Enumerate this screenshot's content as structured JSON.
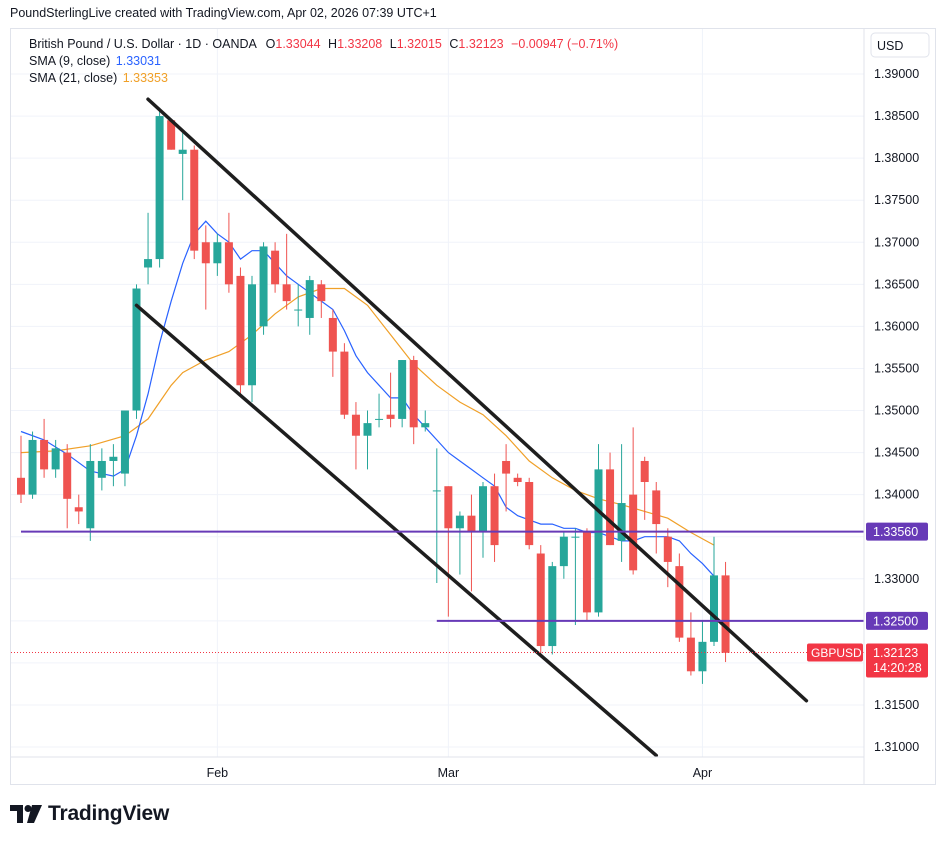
{
  "header": {
    "caption": "PoundSterlingLive created with TradingView.com, Apr 02, 2026 07:39 UTC+1"
  },
  "legend": {
    "instrument": "British Pound / U.S. Dollar · 1D · OANDA",
    "o_label": "O",
    "o_value": "1.33044",
    "h_label": "H",
    "h_value": "1.33208",
    "l_label": "L",
    "l_value": "1.32015",
    "c_label": "C",
    "c_value": "1.32123",
    "change": "−0.00947 (−0.71%)",
    "sma9_label": "SMA (9, close)",
    "sma9_value": "1.33031",
    "sma21_label": "SMA (21, close)",
    "sma21_value": "1.33353"
  },
  "currency": "USD",
  "logo": {
    "text": "TradingView"
  },
  "colors": {
    "up": "#26a69a",
    "down": "#ef5350",
    "sma9": "#2962ff",
    "sma21": "#f0a028",
    "level": "#673ab7",
    "trend": "#1e1e1e",
    "price_badge": "#f23645",
    "grid": "#f0f3fa"
  },
  "chart_data": {
    "type": "candlestick",
    "symbol": "GBPUSD",
    "ylim": [
      1.3075,
      1.3915
    ],
    "yticks": [
      "1.39000",
      "1.38500",
      "1.38000",
      "1.37500",
      "1.37000",
      "1.36500",
      "1.36000",
      "1.35500",
      "1.35000",
      "1.34500",
      "1.34000",
      "1.33500",
      "1.33000",
      "1.32500",
      "1.32000",
      "1.31500",
      "1.31000"
    ],
    "xlabels": [
      {
        "i": 17,
        "label": "Feb"
      },
      {
        "i": 37,
        "label": "Mar"
      },
      {
        "i": 59,
        "label": "Apr"
      }
    ],
    "candles": [
      [
        1.342,
        1.347,
        1.339,
        1.34
      ],
      [
        1.34,
        1.3475,
        1.3395,
        1.3465
      ],
      [
        1.3465,
        1.349,
        1.342,
        1.343
      ],
      [
        1.343,
        1.3465,
        1.342,
        1.3455
      ],
      [
        1.345,
        1.346,
        1.336,
        1.3395
      ],
      [
        1.3385,
        1.34,
        1.3365,
        1.338
      ],
      [
        1.336,
        1.346,
        1.3345,
        1.344
      ],
      [
        1.342,
        1.3455,
        1.3405,
        1.344
      ],
      [
        1.344,
        1.346,
        1.341,
        1.3445
      ],
      [
        1.3425,
        1.35,
        1.341,
        1.35
      ],
      [
        1.35,
        1.365,
        1.349,
        1.3645
      ],
      [
        1.367,
        1.3735,
        1.365,
        1.368
      ],
      [
        1.368,
        1.386,
        1.367,
        1.385
      ],
      [
        1.3845,
        1.3845,
        1.381,
        1.381
      ],
      [
        1.3805,
        1.383,
        1.375,
        1.381
      ],
      [
        1.381,
        1.3815,
        1.368,
        1.369
      ],
      [
        1.37,
        1.372,
        1.362,
        1.3675
      ],
      [
        1.3675,
        1.371,
        1.366,
        1.37
      ],
      [
        1.37,
        1.3735,
        1.364,
        1.365
      ],
      [
        1.366,
        1.367,
        1.352,
        1.353
      ],
      [
        1.353,
        1.366,
        1.351,
        1.365
      ],
      [
        1.36,
        1.37,
        1.359,
        1.3695
      ],
      [
        1.369,
        1.37,
        1.364,
        1.365
      ],
      [
        1.365,
        1.371,
        1.362,
        1.363
      ],
      [
        1.362,
        1.365,
        1.36,
        1.362
      ],
      [
        1.361,
        1.366,
        1.359,
        1.3655
      ],
      [
        1.365,
        1.3655,
        1.361,
        1.363
      ],
      [
        1.361,
        1.362,
        1.354,
        1.357
      ],
      [
        1.357,
        1.358,
        1.349,
        1.3495
      ],
      [
        1.3495,
        1.351,
        1.343,
        1.347
      ],
      [
        1.347,
        1.35,
        1.343,
        1.3485
      ],
      [
        1.349,
        1.352,
        1.348,
        1.349
      ],
      [
        1.3495,
        1.3545,
        1.348,
        1.349
      ],
      [
        1.349,
        1.356,
        1.348,
        1.356
      ],
      [
        1.356,
        1.3565,
        1.346,
        1.348
      ],
      [
        1.348,
        1.35,
        1.3475,
        1.3485
      ],
      [
        1.3405,
        1.3455,
        1.3295,
        1.3405
      ],
      [
        1.341,
        1.341,
        1.3255,
        1.336
      ],
      [
        1.336,
        1.338,
        1.3305,
        1.3375
      ],
      [
        1.3375,
        1.34,
        1.3285,
        1.3355
      ],
      [
        1.3355,
        1.3415,
        1.3325,
        1.341
      ],
      [
        1.341,
        1.3425,
        1.332,
        1.334
      ],
      [
        1.344,
        1.346,
        1.338,
        1.3425
      ],
      [
        1.342,
        1.3425,
        1.341,
        1.3415
      ],
      [
        1.3415,
        1.342,
        1.3335,
        1.334
      ],
      [
        1.333,
        1.334,
        1.321,
        1.322
      ],
      [
        1.322,
        1.332,
        1.321,
        1.3315
      ],
      [
        1.3315,
        1.3355,
        1.33,
        1.335
      ],
      [
        1.335,
        1.336,
        1.3245,
        1.335
      ],
      [
        1.3355,
        1.336,
        1.325,
        1.326
      ],
      [
        1.326,
        1.346,
        1.3255,
        1.343
      ],
      [
        1.343,
        1.345,
        1.334,
        1.334
      ],
      [
        1.3345,
        1.346,
        1.332,
        1.339
      ],
      [
        1.34,
        1.348,
        1.3305,
        1.331
      ],
      [
        1.344,
        1.3445,
        1.337,
        1.3415
      ],
      [
        1.3405,
        1.3415,
        1.333,
        1.3365
      ],
      [
        1.335,
        1.336,
        1.329,
        1.332
      ],
      [
        1.3315,
        1.333,
        1.3225,
        1.323
      ],
      [
        1.323,
        1.326,
        1.3185,
        1.319
      ],
      [
        1.319,
        1.325,
        1.3175,
        1.3225
      ],
      [
        1.3225,
        1.335,
        1.322,
        1.3304
      ],
      [
        1.3304,
        1.332,
        1.3201,
        1.3212
      ]
    ],
    "sma9": [
      [
        0,
        1.3475
      ],
      [
        2,
        1.3465
      ],
      [
        4,
        1.3448
      ],
      [
        6,
        1.3428
      ],
      [
        8,
        1.3422
      ],
      [
        9,
        1.343
      ],
      [
        10,
        1.347
      ],
      [
        11,
        1.352
      ],
      [
        12,
        1.358
      ],
      [
        13,
        1.363
      ],
      [
        14,
        1.3675
      ],
      [
        15,
        1.371
      ],
      [
        16,
        1.3725
      ],
      [
        17,
        1.371
      ],
      [
        18,
        1.37
      ],
      [
        19,
        1.368
      ],
      [
        20,
        1.369
      ],
      [
        21,
        1.369
      ],
      [
        22,
        1.3675
      ],
      [
        23,
        1.366
      ],
      [
        24,
        1.365
      ],
      [
        25,
        1.364
      ],
      [
        26,
        1.363
      ],
      [
        27,
        1.362
      ],
      [
        28,
        1.3595
      ],
      [
        29,
        1.3565
      ],
      [
        30,
        1.3545
      ],
      [
        31,
        1.353
      ],
      [
        32,
        1.3515
      ],
      [
        33,
        1.3515
      ],
      [
        34,
        1.3495
      ],
      [
        35,
        1.348
      ],
      [
        36,
        1.3465
      ],
      [
        37,
        1.345
      ],
      [
        38,
        1.344
      ],
      [
        39,
        1.343
      ],
      [
        40,
        1.342
      ],
      [
        41,
        1.341
      ],
      [
        42,
        1.3385
      ],
      [
        43,
        1.3375
      ],
      [
        44,
        1.337
      ],
      [
        45,
        1.3365
      ],
      [
        46,
        1.3365
      ],
      [
        47,
        1.336
      ],
      [
        48,
        1.336
      ],
      [
        49,
        1.3355
      ],
      [
        50,
        1.3355
      ],
      [
        51,
        1.335
      ],
      [
        52,
        1.3345
      ],
      [
        53,
        1.3345
      ],
      [
        54,
        1.335
      ],
      [
        55,
        1.335
      ],
      [
        56,
        1.335
      ],
      [
        57,
        1.3345
      ],
      [
        58,
        1.333
      ],
      [
        59,
        1.3318
      ],
      [
        60,
        1.3303
      ]
    ],
    "sma21": [
      [
        0,
        1.345
      ],
      [
        3,
        1.3452
      ],
      [
        6,
        1.3458
      ],
      [
        9,
        1.347
      ],
      [
        11,
        1.349
      ],
      [
        12,
        1.351
      ],
      [
        13,
        1.353
      ],
      [
        14,
        1.3545
      ],
      [
        16,
        1.356
      ],
      [
        18,
        1.357
      ],
      [
        20,
        1.359
      ],
      [
        22,
        1.3615
      ],
      [
        24,
        1.3635
      ],
      [
        26,
        1.3645
      ],
      [
        28,
        1.3645
      ],
      [
        30,
        1.3625
      ],
      [
        32,
        1.359
      ],
      [
        34,
        1.3555
      ],
      [
        36,
        1.353
      ],
      [
        38,
        1.351
      ],
      [
        40,
        1.3495
      ],
      [
        42,
        1.347
      ],
      [
        44,
        1.344
      ],
      [
        46,
        1.342
      ],
      [
        48,
        1.3405
      ],
      [
        50,
        1.3395
      ],
      [
        52,
        1.3388
      ],
      [
        54,
        1.338
      ],
      [
        56,
        1.3372
      ],
      [
        58,
        1.3355
      ],
      [
        60,
        1.334
      ]
    ],
    "trendlines": [
      {
        "from": [
          11,
          1.387
        ],
        "to": [
          68,
          1.3155
        ]
      },
      {
        "from": [
          10,
          1.3625
        ],
        "to": [
          55,
          1.309
        ]
      }
    ],
    "levels": [
      {
        "value": 1.3356,
        "label": "1.33560",
        "from_i": 0
      },
      {
        "value": 1.325,
        "label": "1.32500",
        "from_i": 36
      }
    ],
    "last_price": {
      "value": 1.32123,
      "label": "1.32123",
      "countdown": "14:20:28",
      "symbol_label": "GBPUSD"
    }
  }
}
